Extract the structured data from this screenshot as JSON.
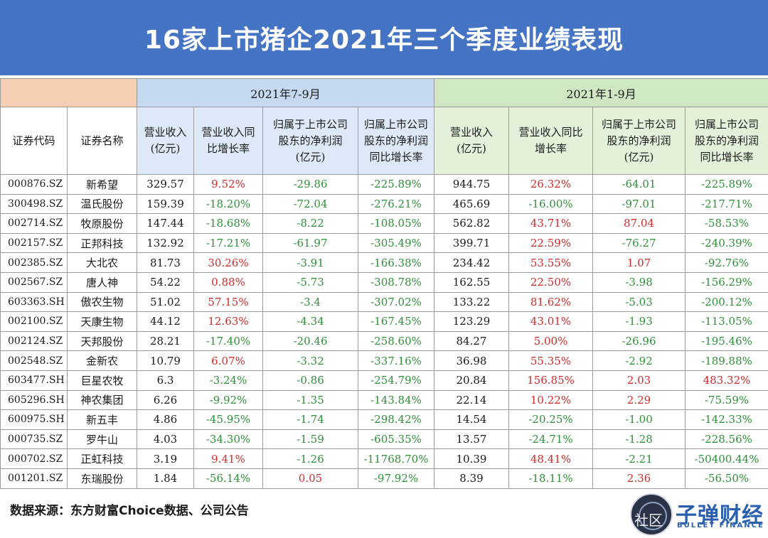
{
  "title": "16家上市猪企2021年三个季度业绩表现",
  "groups": {
    "a": "2021年7-9月",
    "b": "2021年1-9月"
  },
  "headers": {
    "code": "证券代码",
    "name": "证券名称",
    "a": [
      [
        "营业收入",
        "(亿元)"
      ],
      [
        "营业收入同",
        "比增长率"
      ],
      [
        "归属于上市公司",
        "股东的净利润",
        "(亿元)"
      ],
      [
        "归属上市公司",
        "股东的净利润",
        "同比增长率"
      ]
    ],
    "b": [
      [
        "营业收入",
        "(亿元)"
      ],
      [
        "营业收入同比",
        "增长率"
      ],
      [
        "归属于上市公司",
        "股东的净利润",
        "(亿元)"
      ],
      [
        "归属上市公司",
        "股东的净利润",
        "同比增长率"
      ]
    ]
  },
  "rows": [
    [
      "000876.SZ",
      "新希望",
      "329.57",
      "9.52%",
      "-29.86",
      "-225.89%",
      "944.75",
      "26.32%",
      "-64.01",
      "-225.89%"
    ],
    [
      "300498.SZ",
      "温氏股份",
      "159.39",
      "-18.20%",
      "-72.04",
      "-276.21%",
      "465.69",
      "-16.00%",
      "-97.01",
      "-217.71%"
    ],
    [
      "002714.SZ",
      "牧原股份",
      "147.44",
      "-18.68%",
      "-8.22",
      "-108.05%",
      "562.82",
      "43.71%",
      "87.04",
      "-58.53%"
    ],
    [
      "002157.SZ",
      "正邦科技",
      "132.92",
      "-17.21%",
      "-61.97",
      "-305.49%",
      "399.71",
      "22.59%",
      "-76.27",
      "-240.39%"
    ],
    [
      "002385.SZ",
      "大北农",
      "81.73",
      "30.26%",
      "-3.91",
      "-166.38%",
      "234.42",
      "53.55%",
      "1.07",
      "-92.76%"
    ],
    [
      "002567.SZ",
      "唐人神",
      "54.22",
      "0.88%",
      "-5.73",
      "-308.78%",
      "162.55",
      "22.50%",
      "-3.98",
      "-156.29%"
    ],
    [
      "603363.SH",
      "傲农生物",
      "51.02",
      "57.15%",
      "-3.4",
      "-307.02%",
      "133.22",
      "81.62%",
      "-5.03",
      "-200.12%"
    ],
    [
      "002100.SZ",
      "天康生物",
      "44.12",
      "12.63%",
      "-4.34",
      "-167.45%",
      "123.29",
      "43.01%",
      "-1.93",
      "-113.05%"
    ],
    [
      "002124.SZ",
      "天邦股份",
      "28.21",
      "-17.40%",
      "-20.46",
      "-258.60%",
      "84.27",
      "5.00%",
      "-26.96",
      "-195.46%"
    ],
    [
      "002548.SZ",
      "金新农",
      "10.79",
      "6.07%",
      "-3.32",
      "-337.16%",
      "36.98",
      "55.35%",
      "-2.92",
      "-189.88%"
    ],
    [
      "603477.SH",
      "巨星农牧",
      "6.3",
      "-3.24%",
      "-0.86",
      "-254.79%",
      "20.84",
      "156.85%",
      "2.03",
      "483.32%"
    ],
    [
      "605296.SH",
      "神农集团",
      "6.26",
      "-9.92%",
      "-1.35",
      "-143.84%",
      "22.14",
      "10.22%",
      "2.29",
      "-75.59%"
    ],
    [
      "600975.SH",
      "新五丰",
      "4.86",
      "-45.95%",
      "-1.74",
      "-298.42%",
      "14.54",
      "-20.25%",
      "-1.00",
      "-142.33%"
    ],
    [
      "000735.SZ",
      "罗牛山",
      "4.03",
      "-34.30%",
      "-1.59",
      "-605.35%",
      "13.57",
      "-24.71%",
      "-1.28",
      "-228.56%"
    ],
    [
      "000702.SZ",
      "正虹科技",
      "3.19",
      "9.41%",
      "-1.26",
      "-11768.70%",
      "10.39",
      "48.41%",
      "-2.21",
      "-50400.44%"
    ],
    [
      "001201.SZ",
      "东瑞股份",
      "1.84",
      "-56.14%",
      "0.05",
      "-97.92%",
      "8.39",
      "-18.11%",
      "2.36",
      "-56.50%"
    ]
  ],
  "colors": {
    "positive": "#d12a2a",
    "negative": "#2f8f3a",
    "title_bg": "#4674c5"
  },
  "footer": {
    "source": "数据来源：东方财富Choice数据、公司公告"
  },
  "logo": {
    "main": "子弹财经",
    "sub": "BULLET FINANCE",
    "icon": "bullet-finance-logo-icon",
    "watermark": "社区"
  }
}
